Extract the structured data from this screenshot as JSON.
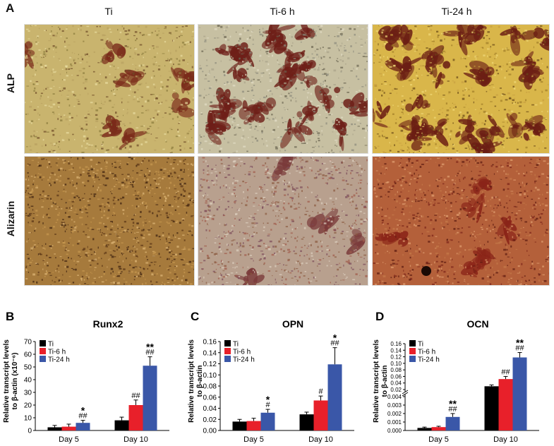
{
  "panelA": {
    "letter": "A",
    "columns": [
      "Ti",
      "Ti-6 h",
      "Ti-24 h"
    ],
    "rows": [
      "ALP",
      "Alizarin"
    ]
  },
  "colors": {
    "Ti": "#000000",
    "Ti-6 h": "#e8202a",
    "Ti-24 h": "#3a57a8"
  },
  "chart_data": [
    {
      "panel": "B",
      "type": "bar",
      "title": "Runx2",
      "ylabel_line1": "Relative transcript levels",
      "ylabel_line2": "to β-actin (x10⁻⁶)",
      "categories": [
        "Day 5",
        "Day 10"
      ],
      "ylim": [
        0,
        70
      ],
      "yticks": [
        "0",
        "10",
        "20",
        "30",
        "40",
        "50",
        "60",
        "70"
      ],
      "series": [
        {
          "name": "Ti",
          "values": [
            2.5,
            8
          ],
          "errors": [
            1.5,
            2.5
          ]
        },
        {
          "name": "Ti-6 h",
          "values": [
            3,
            20
          ],
          "errors": [
            2,
            4
          ]
        },
        {
          "name": "Ti-24 h",
          "values": [
            6,
            51
          ],
          "errors": [
            2,
            7
          ]
        }
      ],
      "annotations": [
        {
          "category": 0,
          "series": 2,
          "lines": [
            "*",
            "##"
          ]
        },
        {
          "category": 1,
          "series": 1,
          "lines": [
            "##"
          ]
        },
        {
          "category": 1,
          "series": 2,
          "lines": [
            "**",
            "##"
          ]
        }
      ],
      "legend": "top-left"
    },
    {
      "panel": "C",
      "type": "bar",
      "title": "OPN",
      "ylabel_line1": "Relative transcript levels",
      "ylabel_line2": "to β-actin",
      "categories": [
        "Day 5",
        "Day 10"
      ],
      "ylim": [
        0,
        0.16
      ],
      "yticks": [
        "0.00",
        "0.02",
        "0.04",
        "0.06",
        "0.08",
        "0.10",
        "0.12",
        "0.14",
        "0.16"
      ],
      "series": [
        {
          "name": "Ti",
          "values": [
            0.016,
            0.029
          ],
          "errors": [
            0.004,
            0.004
          ]
        },
        {
          "name": "Ti-6 h",
          "values": [
            0.017,
            0.054
          ],
          "errors": [
            0.005,
            0.008
          ]
        },
        {
          "name": "Ti-24 h",
          "values": [
            0.032,
            0.119
          ],
          "errors": [
            0.006,
            0.03
          ]
        }
      ],
      "annotations": [
        {
          "category": 0,
          "series": 2,
          "lines": [
            "*",
            "#"
          ]
        },
        {
          "category": 1,
          "series": 1,
          "lines": [
            "#"
          ]
        },
        {
          "category": 1,
          "series": 2,
          "lines": [
            "*",
            "##"
          ]
        }
      ],
      "legend": "top-left"
    },
    {
      "panel": "D",
      "type": "bar",
      "title": "OCN",
      "ylabel_line1": "Relative transcript levels",
      "ylabel_line2": "to β-actin",
      "categories": [
        "Day 5",
        "Day 10"
      ],
      "broken_axis": true,
      "lower_ylim": [
        0,
        0.004
      ],
      "lower_yticks": [
        "0.000",
        "0.001",
        "0.002",
        "0.003",
        "0.004"
      ],
      "upper_ylim": [
        0.02,
        0.16
      ],
      "upper_yticks": [
        "0.02",
        "0.04",
        "0.06",
        "0.08",
        "0.10",
        "0.12",
        "0.14",
        "0.16"
      ],
      "series": [
        {
          "name": "Ti",
          "values": [
            0.0003,
            0.03
          ],
          "errors": [
            0.0001,
            0.004
          ]
        },
        {
          "name": "Ti-6 h",
          "values": [
            0.0004,
            0.052
          ],
          "errors": [
            0.0001,
            0.008
          ]
        },
        {
          "name": "Ti-24 h",
          "values": [
            0.0016,
            0.118
          ],
          "errors": [
            0.0004,
            0.015
          ]
        }
      ],
      "annotations": [
        {
          "category": 0,
          "series": 2,
          "lines": [
            "**",
            "##"
          ]
        },
        {
          "category": 1,
          "series": 1,
          "lines": [
            "##"
          ]
        },
        {
          "category": 1,
          "series": 2,
          "lines": [
            "**",
            "##"
          ]
        }
      ],
      "legend": "top-left"
    }
  ]
}
